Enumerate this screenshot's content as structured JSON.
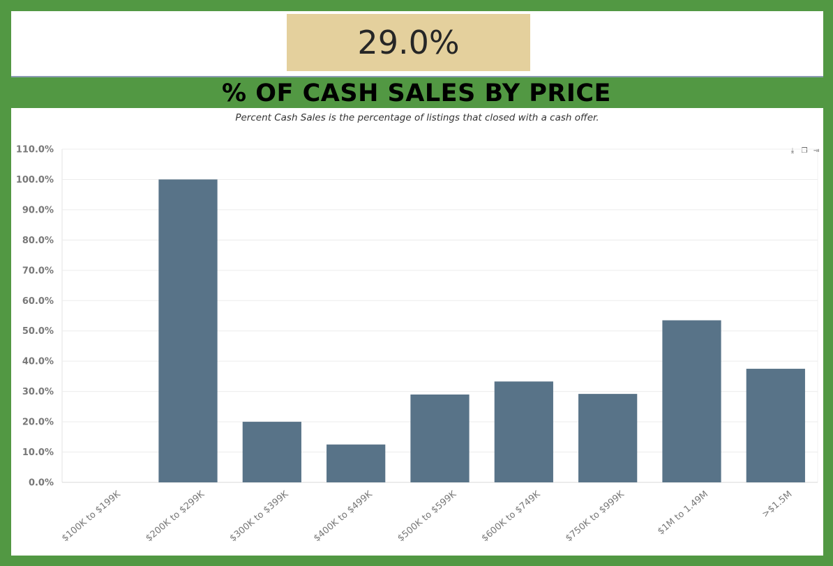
{
  "kpi": {
    "value": "29.0%"
  },
  "title": "% OF CASH SALES BY PRICE",
  "subtitle": "Percent Cash Sales is the percentage of listings that closed with a cash offer.",
  "colors": {
    "bar": "#587388",
    "grid": "#ececec",
    "kpi_bg": "#e4d09d",
    "frame": "#529843"
  },
  "toolbar": {
    "icons": [
      "download-icon",
      "copy-icon",
      "export-icon"
    ]
  },
  "chart_data": {
    "type": "bar",
    "categories": [
      "$100K to $199K",
      "$200K to $299K",
      "$300K to $399K",
      "$400K to $499K",
      "$500K to $599K",
      "$600K to $749K",
      "$750K to $999K",
      "$1M to 1.49M",
      ">$1.5M"
    ],
    "values": [
      0,
      100,
      20,
      12.5,
      29,
      33.3,
      29.2,
      53.5,
      37.5
    ],
    "ylim": [
      0,
      110
    ],
    "yticks": [
      "0.0%",
      "10.0%",
      "20.0%",
      "30.0%",
      "40.0%",
      "50.0%",
      "60.0%",
      "70.0%",
      "80.0%",
      "90.0%",
      "100.0%",
      "110.0%"
    ],
    "title": "% OF CASH SALES BY PRICE",
    "xlabel": "",
    "ylabel": "",
    "grid": true,
    "legend": "none"
  }
}
